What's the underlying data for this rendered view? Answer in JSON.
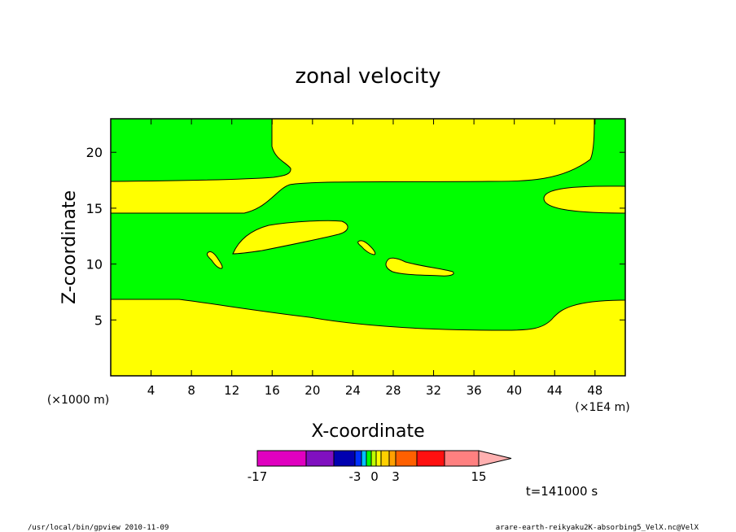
{
  "chart_data": {
    "type": "contour",
    "title": "zonal velocity",
    "xlabel": "X-coordinate",
    "ylabel": "Z-coordinate",
    "x_unit_left": "(×1000 m)",
    "x_unit_right": "(×1E4 m)",
    "xlim": [
      0,
      51
    ],
    "ylim": [
      0,
      23
    ],
    "x_ticks": [
      4,
      8,
      12,
      16,
      20,
      24,
      28,
      32,
      36,
      40,
      44,
      48
    ],
    "y_ticks": [
      5,
      10,
      15,
      20
    ],
    "fill_colors": {
      "band_a": "#ffff00",
      "band_b": "#00ff00"
    },
    "colorbar": {
      "colors": [
        "#e000c0",
        "#8010c0",
        "#0000b0",
        "#0030ff",
        "#00c0ff",
        "#00ff00",
        "#c0ff00",
        "#ffff00",
        "#ffd000",
        "#ffa000",
        "#ff6000",
        "#ff1010",
        "#ff8080",
        "#ffb0b0"
      ],
      "tick_labels": [
        "-17",
        "-3",
        "0",
        "3",
        "15"
      ]
    },
    "time_label": "t=141000 s"
  },
  "footer": {
    "left": "/usr/local/bin/gpview  2010-11-09",
    "right": "arare-earth-reikyaku2K-absorbing5_VelX.nc@VelX"
  }
}
